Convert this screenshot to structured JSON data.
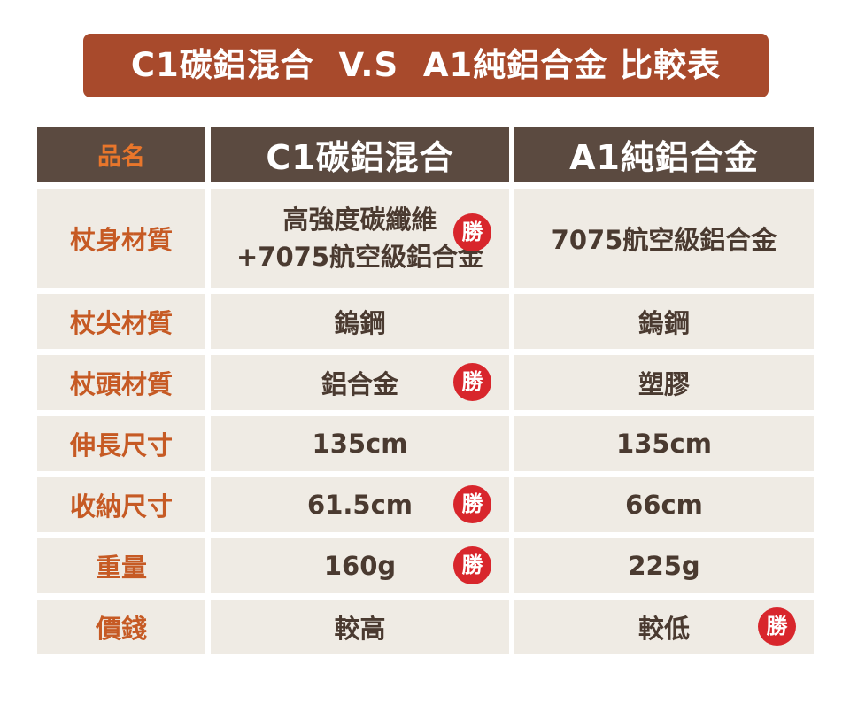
{
  "title": "C1碳鋁混合  V.S  A1純鋁合金 比較表",
  "header": {
    "label": "品名",
    "col1": "C1碳鋁混合",
    "col2": "A1純鋁合金"
  },
  "win_label": "勝",
  "rows": [
    {
      "label": "杖身材質",
      "c1_line1": "高強度碳纖維",
      "c1_line2": "+7075航空級鋁合金",
      "c2": "7075航空級鋁合金",
      "winner": "C1"
    },
    {
      "label": "杖尖材質",
      "c1": "鎢鋼",
      "c2": "鎢鋼",
      "winner": ""
    },
    {
      "label": "杖頭材質",
      "c1": "鋁合金",
      "c2": "塑膠",
      "winner": "C1"
    },
    {
      "label": "伸長尺寸",
      "c1": "135cm",
      "c2": "135cm",
      "winner": ""
    },
    {
      "label": "收納尺寸",
      "c1": "61.5cm",
      "c2": "66cm",
      "winner": "C1"
    },
    {
      "label": "重量",
      "c1": "160g",
      "c2": "225g",
      "winner": "C1"
    },
    {
      "label": "價錢",
      "c1": "較高",
      "c2": "較低",
      "winner": "A1"
    }
  ],
  "colors": {
    "banner": "#a84a2c",
    "header_bg": "#5b4a40",
    "header_label": "#e9762b",
    "row_bg": "#efebe4",
    "row_label": "#c65a24",
    "win_badge": "#d8262c"
  }
}
